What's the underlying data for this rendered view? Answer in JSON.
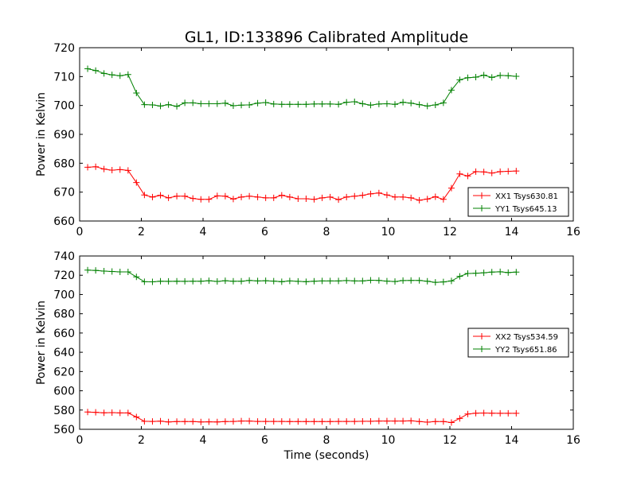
{
  "title": "GL1, ID:133896 Calibrated Amplitude",
  "colors": {
    "series_a": "#ff0000",
    "series_b": "#008000",
    "axes": "#000000"
  },
  "chart_data": [
    {
      "type": "line",
      "title": "GL1, ID:133896 Calibrated Amplitude",
      "xlabel": "",
      "ylabel": "Power in Kelvin",
      "xlim": [
        0,
        16
      ],
      "ylim": [
        660,
        720
      ],
      "xticks": [
        0,
        2,
        4,
        6,
        8,
        10,
        12,
        14,
        16
      ],
      "yticks": [
        660,
        670,
        680,
        690,
        700,
        710,
        720
      ],
      "grid": false,
      "legend_position": "lower-right",
      "x": [
        0.26,
        0.52,
        0.79,
        1.05,
        1.31,
        1.57,
        1.84,
        2.1,
        2.36,
        2.62,
        2.88,
        3.15,
        3.41,
        3.67,
        3.93,
        4.19,
        4.46,
        4.72,
        4.98,
        5.24,
        5.5,
        5.77,
        6.03,
        6.29,
        6.55,
        6.81,
        7.08,
        7.34,
        7.6,
        7.86,
        8.12,
        8.39,
        8.65,
        8.91,
        9.17,
        9.43,
        9.7,
        9.96,
        10.22,
        10.48,
        10.74,
        11.01,
        11.27,
        11.53,
        11.79,
        12.05,
        12.32,
        12.58,
        12.84,
        13.1,
        13.36,
        13.63,
        13.89,
        14.15
      ],
      "series": [
        {
          "name": "XX1 Tsys630.81",
          "color": "#ff0000",
          "values": [
            678.6,
            678.8,
            678.0,
            677.6,
            677.8,
            677.5,
            673.3,
            669.0,
            668.3,
            668.9,
            668.0,
            668.6,
            668.6,
            667.8,
            667.5,
            667.5,
            668.7,
            668.6,
            667.6,
            668.3,
            668.6,
            668.3,
            668.0,
            668.0,
            668.9,
            668.3,
            667.7,
            667.7,
            667.5,
            668.0,
            668.3,
            667.4,
            668.3,
            668.6,
            668.9,
            669.4,
            669.7,
            669.0,
            668.3,
            668.3,
            668.0,
            667.2,
            667.6,
            668.4,
            667.5,
            671.4,
            676.3,
            675.6,
            677.1,
            677.0,
            676.6,
            677.1,
            677.2,
            677.3
          ]
        },
        {
          "name": "YY1 Tsys645.13",
          "color": "#008000",
          "values": [
            712.7,
            712.1,
            711.1,
            710.6,
            710.3,
            710.7,
            704.3,
            700.3,
            700.2,
            699.8,
            700.3,
            699.7,
            700.9,
            700.9,
            700.6,
            700.6,
            700.6,
            700.8,
            699.9,
            700.1,
            700.2,
            700.8,
            701.0,
            700.5,
            700.4,
            700.4,
            700.4,
            700.4,
            700.5,
            700.5,
            700.5,
            700.4,
            701.1,
            701.3,
            700.6,
            700.1,
            700.5,
            700.6,
            700.4,
            701.1,
            700.8,
            700.3,
            699.8,
            700.2,
            700.9,
            705.3,
            708.9,
            709.6,
            709.8,
            710.5,
            709.7,
            710.4,
            710.3,
            710.1
          ]
        }
      ]
    },
    {
      "type": "line",
      "title": "",
      "xlabel": "Time (seconds)",
      "ylabel": "Power in Kelvin",
      "xlim": [
        0,
        16
      ],
      "ylim": [
        560,
        740
      ],
      "xticks": [
        0,
        2,
        4,
        6,
        8,
        10,
        12,
        14,
        16
      ],
      "yticks": [
        560,
        580,
        600,
        620,
        640,
        660,
        680,
        700,
        720,
        740
      ],
      "grid": false,
      "legend_position": "center-right",
      "x": [
        0.26,
        0.52,
        0.79,
        1.05,
        1.31,
        1.57,
        1.84,
        2.1,
        2.36,
        2.62,
        2.88,
        3.15,
        3.41,
        3.67,
        3.93,
        4.19,
        4.46,
        4.72,
        4.98,
        5.24,
        5.5,
        5.77,
        6.03,
        6.29,
        6.55,
        6.81,
        7.08,
        7.34,
        7.6,
        7.86,
        8.12,
        8.39,
        8.65,
        8.91,
        9.17,
        9.43,
        9.7,
        9.96,
        10.22,
        10.48,
        10.74,
        11.01,
        11.27,
        11.53,
        11.79,
        12.05,
        12.32,
        12.58,
        12.84,
        13.1,
        13.36,
        13.63,
        13.89,
        14.15
      ],
      "series": [
        {
          "name": "XX2 Tsys534.59",
          "color": "#ff0000",
          "values": [
            578,
            577.6,
            577.1,
            577.3,
            577.0,
            577.0,
            572.8,
            568.3,
            568.2,
            568.5,
            567.6,
            568.0,
            568.0,
            568.0,
            567.6,
            567.8,
            567.6,
            568.0,
            568.2,
            568.6,
            568.6,
            568.2,
            568.2,
            568.2,
            568.2,
            568.1,
            568.1,
            568.0,
            568.1,
            568.0,
            568.0,
            568.2,
            568.2,
            568.2,
            568.3,
            568.3,
            568.6,
            568.6,
            568.6,
            568.6,
            568.8,
            568.0,
            567.4,
            568.0,
            568.0,
            567.0,
            571.3,
            575.9,
            576.7,
            576.9,
            576.7,
            576.6,
            576.6,
            576.6
          ]
        },
        {
          "name": "YY2 Tsys651.86",
          "color": "#008000",
          "values": [
            725.3,
            725.0,
            724.3,
            723.9,
            723.5,
            723.5,
            718.3,
            713.3,
            713.2,
            713.8,
            713.7,
            713.8,
            713.7,
            713.8,
            713.8,
            714.3,
            713.6,
            714.3,
            713.8,
            713.8,
            714.6,
            714.1,
            714.3,
            713.9,
            713.3,
            714.1,
            713.7,
            713.3,
            713.8,
            714.1,
            714.1,
            714.1,
            714.5,
            714.1,
            714.1,
            714.8,
            714.6,
            713.9,
            713.5,
            714.5,
            714.6,
            714.6,
            713.8,
            712.6,
            713.1,
            714.1,
            718.8,
            721.8,
            722.1,
            722.6,
            723.3,
            723.6,
            722.8,
            723.3
          ]
        }
      ]
    }
  ]
}
